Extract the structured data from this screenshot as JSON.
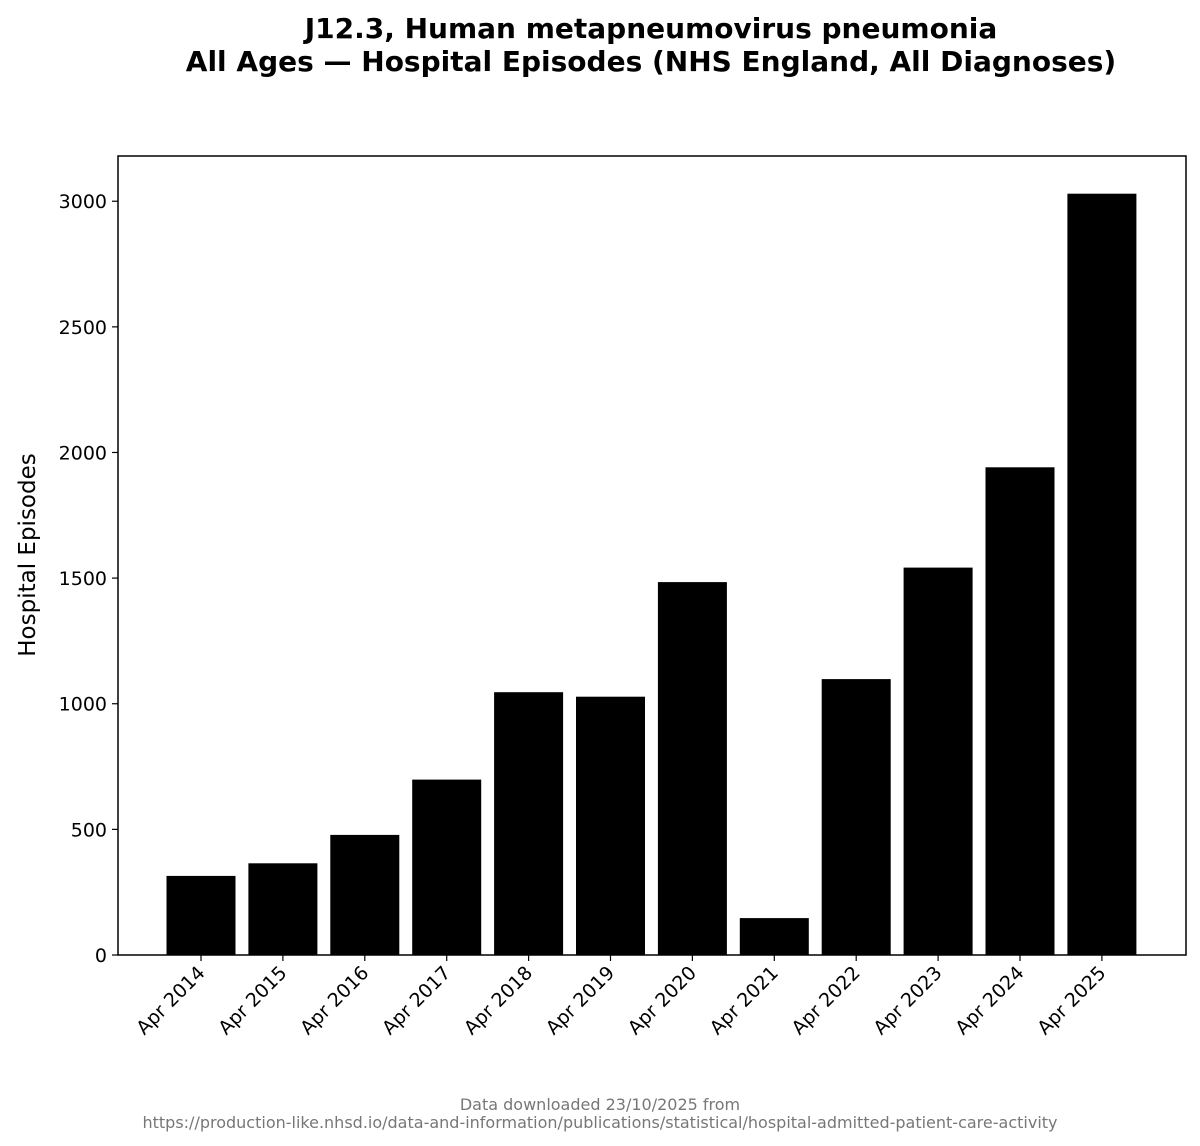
{
  "chart_data": {
    "type": "bar",
    "title": "J12.3, Human metapneumovirus pneumonia\nAll Ages — Hospital Episodes (NHS England, All Diagnoses)",
    "title_lines": [
      "J12.3, Human metapneumovirus pneumonia",
      "All Ages — Hospital Episodes (NHS England, All Diagnoses)"
    ],
    "xlabel": "",
    "ylabel": "Hospital Episodes",
    "categories": [
      "Apr 2014",
      "Apr 2015",
      "Apr 2016",
      "Apr 2017",
      "Apr 2018",
      "Apr 2019",
      "Apr 2020",
      "Apr 2021",
      "Apr 2022",
      "Apr 2023",
      "Apr 2024",
      "Apr 2025"
    ],
    "values": [
      315,
      365,
      478,
      698,
      1046,
      1028,
      1484,
      147,
      1098,
      1542,
      1941,
      3030
    ],
    "ylim": [
      0,
      3180
    ],
    "yticks": [
      0,
      500,
      1000,
      1500,
      2000,
      2500,
      3000
    ],
    "bar_color": "#000000",
    "grid": false,
    "legend": "none"
  },
  "footer": {
    "line1": "Data downloaded 23/10/2025 from",
    "line2": "https://production-like.nhsd.io/data-and-information/publications/statistical/hospital-admitted-patient-care-activity"
  }
}
